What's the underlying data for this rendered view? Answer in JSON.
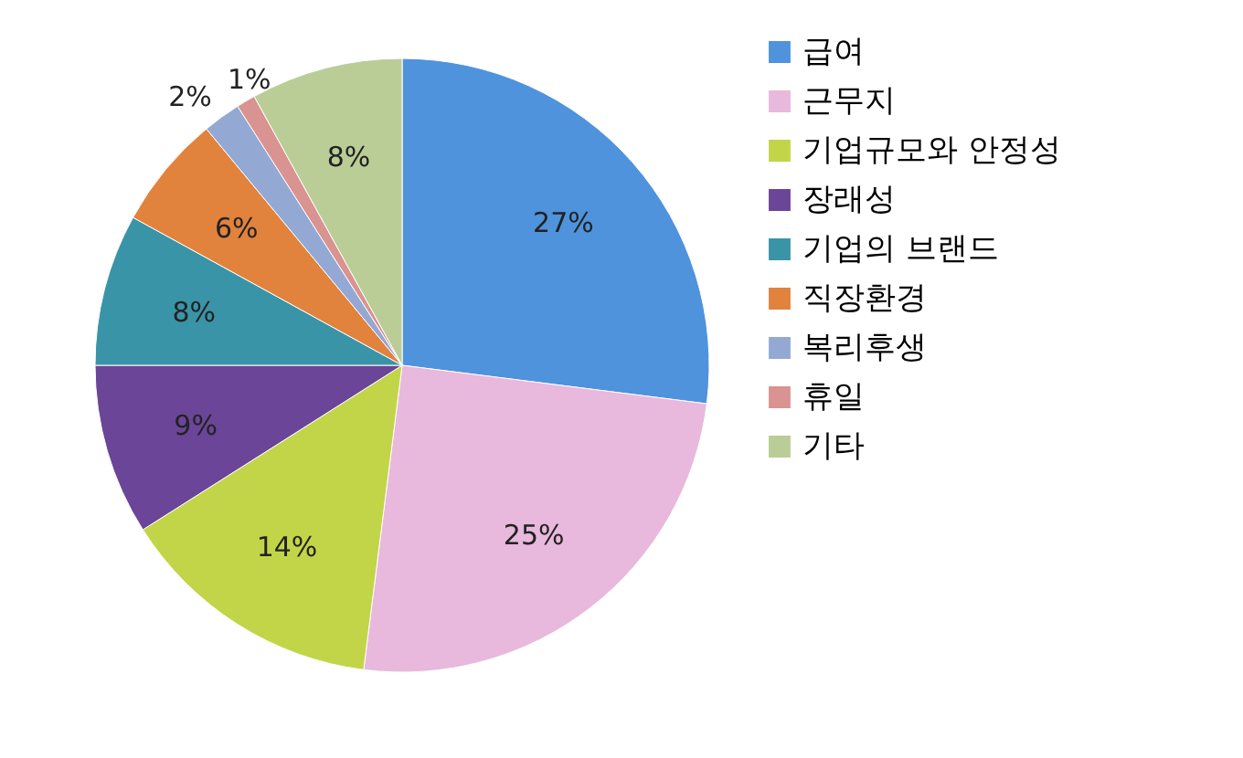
{
  "chart_data": {
    "type": "pie",
    "categories": [
      "급여",
      "근무지",
      "기업규모와 안정성",
      "장래성",
      "기업의 브랜드",
      "직장환경",
      "복리후생",
      "휴일",
      "기타"
    ],
    "values": [
      27,
      25,
      14,
      9,
      8,
      6,
      2,
      1,
      8
    ],
    "value_labels": [
      "27%",
      "25%",
      "14%",
      "9%",
      "8%",
      "6%",
      "2%",
      "1%",
      "8%"
    ],
    "colors": [
      "#4f93dc",
      "#e8b8dd",
      "#c2d549",
      "#6b4597",
      "#3a94a8",
      "#e1823d",
      "#93a9d4",
      "#d99390",
      "#bacd97"
    ],
    "legend": "right"
  }
}
